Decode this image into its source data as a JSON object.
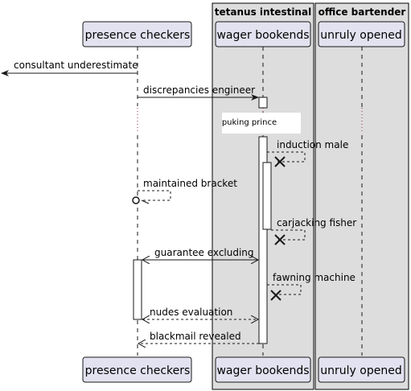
{
  "groups": [
    {
      "title": "tetanus intestinal"
    },
    {
      "title": "office bartender"
    }
  ],
  "participants": [
    {
      "label": "presence checkers"
    },
    {
      "label": "wager bookends"
    },
    {
      "label": "unruly opened"
    }
  ],
  "messages": [
    {
      "label": "consultant underestimate",
      "style": "solid"
    },
    {
      "label": "discrepancies engineer",
      "style": "solid"
    },
    {
      "label": "induction male",
      "style": "dashed",
      "end": "destroy"
    },
    {
      "label": "maintained bracket",
      "style": "dashed",
      "end": "lost"
    },
    {
      "label": "carjacking fisher",
      "style": "dashed",
      "end": "destroy"
    },
    {
      "label": "guarantee excluding",
      "style": "solid",
      "end": "bidirectional"
    },
    {
      "label": "fawning machine",
      "style": "dashed",
      "end": "destroy"
    },
    {
      "label": "nudes evaluation",
      "style": "dashed",
      "end": "bidirectional"
    },
    {
      "label": "blackmail revealed",
      "style": "dashed"
    }
  ],
  "divider": {
    "label": "puking prince"
  },
  "colors": {
    "participant_fill": "#e2e2f0",
    "participant_border": "#181818",
    "group_fill": "#dddddd",
    "lifeline": "#181818",
    "activation_fill": "#ffffff"
  }
}
